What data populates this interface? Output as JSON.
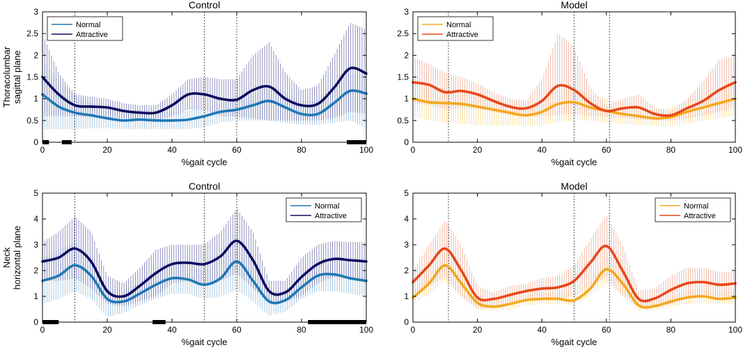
{
  "colors": {
    "control_normal": "#1f77b4",
    "control_attractive": "#0b0b5e",
    "model_normal": "#f4a81d",
    "model_attractive": "#e8471a",
    "control_normal_band": "#7fb2d8",
    "control_attractive_band": "#5a5aa0",
    "model_normal_band": "#f3d27a",
    "model_attractive_band": "#e89a80",
    "event_bar": "#000000"
  },
  "chart_data": [
    {
      "id": "control-thoracolumbar",
      "type": "line",
      "title": "Control",
      "xlabel": "%gait cycle",
      "ylabel": [
        "Thoracolumbar",
        "sagittal plane"
      ],
      "xlim": [
        0,
        100
      ],
      "ylim": [
        0,
        3
      ],
      "xticks": [
        "0",
        "20",
        "40",
        "60",
        "80",
        "100"
      ],
      "yticks": [
        "0",
        "0.5",
        "1",
        "1.5",
        "2",
        "2.5",
        "3"
      ],
      "legend": {
        "placement": "top-left",
        "entries": [
          "Normal",
          "Attractive"
        ]
      },
      "event_lines": [
        10,
        50,
        60
      ],
      "significance_bars": [
        [
          0,
          2
        ],
        [
          6,
          9
        ],
        [
          94,
          100
        ]
      ],
      "series": [
        {
          "name": "Normal",
          "color_key": "control_normal",
          "x": [
            0,
            5,
            10,
            15,
            20,
            25,
            30,
            35,
            40,
            45,
            50,
            55,
            60,
            65,
            70,
            75,
            80,
            85,
            90,
            95,
            100
          ],
          "y": [
            1.1,
            0.82,
            0.68,
            0.62,
            0.55,
            0.5,
            0.52,
            0.5,
            0.5,
            0.52,
            0.6,
            0.7,
            0.75,
            0.85,
            0.95,
            0.8,
            0.65,
            0.65,
            0.9,
            1.18,
            1.12
          ],
          "upper": [
            1.9,
            1.4,
            1.1,
            0.9,
            0.8,
            0.72,
            0.75,
            0.7,
            0.7,
            0.72,
            0.8,
            0.9,
            0.95,
            1.1,
            1.3,
            1.15,
            0.95,
            0.95,
            1.3,
            1.6,
            1.55
          ],
          "lower": [
            0.3,
            0.3,
            0.3,
            0.32,
            0.32,
            0.3,
            0.3,
            0.3,
            0.3,
            0.3,
            0.35,
            0.45,
            0.5,
            0.5,
            0.5,
            0.45,
            0.4,
            0.4,
            0.45,
            0.5,
            0.32
          ]
        },
        {
          "name": "Attractive",
          "color_key": "control_attractive",
          "x": [
            0,
            5,
            10,
            15,
            20,
            25,
            30,
            35,
            40,
            45,
            50,
            55,
            60,
            65,
            70,
            75,
            80,
            85,
            90,
            95,
            100
          ],
          "y": [
            1.5,
            1.1,
            0.85,
            0.82,
            0.8,
            0.72,
            0.68,
            0.68,
            0.85,
            1.1,
            1.1,
            1.0,
            0.98,
            1.2,
            1.28,
            1.0,
            0.85,
            0.88,
            1.25,
            1.7,
            1.58
          ],
          "upper": [
            2.5,
            1.6,
            1.1,
            1.05,
            1.0,
            0.9,
            0.85,
            0.85,
            1.1,
            1.45,
            1.5,
            1.45,
            1.45,
            2.0,
            2.3,
            1.6,
            1.2,
            1.3,
            2.0,
            2.75,
            2.6
          ],
          "lower": [
            0.6,
            0.6,
            0.6,
            0.58,
            0.58,
            0.55,
            0.5,
            0.5,
            0.6,
            0.75,
            0.75,
            0.6,
            0.58,
            0.55,
            0.5,
            0.5,
            0.5,
            0.5,
            0.55,
            0.7,
            0.65
          ]
        }
      ]
    },
    {
      "id": "model-thoracolumbar",
      "type": "line",
      "title": "Model",
      "xlabel": "%gait cycle",
      "ylabel": [],
      "xlim": [
        0,
        100
      ],
      "ylim": [
        0,
        3
      ],
      "xticks": [
        "0",
        "20",
        "40",
        "60",
        "80",
        "100"
      ],
      "yticks": [
        "0",
        "0.5",
        "1",
        "1.5",
        "2",
        "2.5",
        "3"
      ],
      "legend": {
        "placement": "top-left",
        "entries": [
          "Normal",
          "Attractive"
        ]
      },
      "event_lines": [
        11,
        50,
        61
      ],
      "significance_bars": [],
      "series": [
        {
          "name": "Normal",
          "color_key": "model_normal",
          "x": [
            0,
            5,
            10,
            15,
            20,
            25,
            30,
            35,
            40,
            45,
            50,
            55,
            60,
            65,
            70,
            75,
            80,
            85,
            90,
            95,
            100
          ],
          "y": [
            1.0,
            0.92,
            0.9,
            0.88,
            0.82,
            0.75,
            0.68,
            0.62,
            0.7,
            0.88,
            0.92,
            0.8,
            0.72,
            0.65,
            0.6,
            0.55,
            0.58,
            0.7,
            0.8,
            0.9,
            1.0
          ],
          "upper": [
            1.4,
            1.3,
            1.25,
            1.2,
            1.1,
            1.0,
            0.9,
            0.85,
            1.0,
            1.2,
            1.25,
            1.1,
            1.0,
            0.9,
            0.8,
            0.75,
            0.8,
            0.95,
            1.1,
            1.2,
            1.35
          ],
          "lower": [
            0.6,
            0.5,
            0.45,
            0.42,
            0.4,
            0.38,
            0.38,
            0.38,
            0.4,
            0.45,
            0.5,
            0.5,
            0.45,
            0.42,
            0.4,
            0.38,
            0.38,
            0.42,
            0.5,
            0.55,
            0.62
          ]
        },
        {
          "name": "Attractive",
          "color_key": "model_attractive",
          "x": [
            0,
            5,
            10,
            15,
            20,
            25,
            30,
            35,
            40,
            45,
            50,
            55,
            60,
            65,
            70,
            75,
            80,
            85,
            90,
            95,
            100
          ],
          "y": [
            1.38,
            1.32,
            1.15,
            1.18,
            1.1,
            0.95,
            0.82,
            0.78,
            0.95,
            1.3,
            1.2,
            0.9,
            0.72,
            0.78,
            0.8,
            0.65,
            0.62,
            0.78,
            0.95,
            1.2,
            1.38
          ],
          "upper": [
            1.95,
            1.8,
            1.6,
            1.5,
            1.35,
            1.15,
            1.0,
            0.95,
            1.45,
            2.5,
            2.2,
            1.25,
            0.85,
            1.0,
            1.1,
            0.8,
            0.7,
            1.0,
            1.4,
            1.9,
            2.0
          ],
          "lower": [
            0.9,
            0.85,
            0.75,
            0.8,
            0.75,
            0.7,
            0.62,
            0.6,
            0.6,
            0.62,
            0.65,
            0.6,
            0.58,
            0.56,
            0.52,
            0.5,
            0.5,
            0.55,
            0.6,
            0.7,
            0.8
          ]
        }
      ]
    },
    {
      "id": "control-neck",
      "type": "line",
      "title": "Control",
      "xlabel": "%gait cycle",
      "ylabel": [
        "Neck",
        "horizontal plane"
      ],
      "xlim": [
        0,
        100
      ],
      "ylim": [
        0,
        5
      ],
      "xticks": [
        "0",
        "20",
        "40",
        "60",
        "80",
        "100"
      ],
      "yticks": [
        "0",
        "1",
        "2",
        "3",
        "4",
        "5"
      ],
      "legend": {
        "placement": "top-right",
        "entries": [
          "Normal",
          "Attractive"
        ]
      },
      "event_lines": [
        10,
        50,
        60
      ],
      "significance_bars": [
        [
          0,
          5
        ],
        [
          34,
          38
        ],
        [
          82,
          100
        ]
      ],
      "series": [
        {
          "name": "Normal",
          "color_key": "control_normal",
          "x": [
            0,
            5,
            10,
            15,
            20,
            25,
            30,
            35,
            40,
            45,
            50,
            55,
            60,
            65,
            70,
            75,
            80,
            85,
            90,
            95,
            100
          ],
          "y": [
            1.6,
            1.8,
            2.2,
            1.8,
            0.9,
            0.8,
            1.1,
            1.45,
            1.7,
            1.65,
            1.45,
            1.7,
            2.35,
            1.6,
            0.8,
            0.85,
            1.35,
            1.8,
            1.85,
            1.7,
            1.6
          ],
          "upper": [
            2.5,
            2.8,
            3.1,
            2.6,
            1.3,
            1.2,
            1.6,
            2.0,
            2.3,
            2.2,
            2.0,
            2.4,
            3.4,
            2.4,
            1.2,
            1.2,
            1.8,
            2.4,
            2.5,
            2.3,
            2.2
          ],
          "lower": [
            0.7,
            0.9,
            1.2,
            0.9,
            0.2,
            0.35,
            0.65,
            0.9,
            1.1,
            1.1,
            0.9,
            1.0,
            1.25,
            0.8,
            0.25,
            0.4,
            0.9,
            1.2,
            1.2,
            1.1,
            1.0
          ]
        },
        {
          "name": "Attractive",
          "color_key": "control_attractive",
          "x": [
            0,
            5,
            10,
            15,
            20,
            25,
            30,
            35,
            40,
            45,
            50,
            55,
            60,
            65,
            70,
            75,
            80,
            85,
            90,
            95,
            100
          ],
          "y": [
            2.35,
            2.5,
            2.85,
            2.35,
            1.2,
            1.0,
            1.4,
            1.9,
            2.25,
            2.3,
            2.25,
            2.55,
            3.15,
            2.4,
            1.2,
            1.15,
            1.75,
            2.25,
            2.45,
            2.4,
            2.35
          ],
          "upper": [
            3.1,
            3.5,
            4.1,
            3.5,
            1.8,
            1.5,
            2.1,
            2.8,
            3.0,
            3.0,
            3.0,
            3.5,
            4.4,
            3.5,
            1.6,
            1.6,
            2.5,
            3.0,
            3.15,
            3.1,
            3.1
          ],
          "lower": [
            1.6,
            1.6,
            1.7,
            1.3,
            0.7,
            0.6,
            0.8,
            1.0,
            1.5,
            1.6,
            1.5,
            1.6,
            1.9,
            1.3,
            0.8,
            0.8,
            1.0,
            1.5,
            1.75,
            1.7,
            1.6
          ]
        }
      ]
    },
    {
      "id": "model-neck",
      "type": "line",
      "title": "Model",
      "xlabel": "%gait cycle",
      "ylabel": [],
      "xlim": [
        0,
        100
      ],
      "ylim": [
        0,
        5
      ],
      "xticks": [
        "0",
        "20",
        "40",
        "60",
        "80",
        "100"
      ],
      "yticks": [
        "0",
        "1",
        "2",
        "3",
        "4",
        "5"
      ],
      "legend": {
        "placement": "top-right",
        "entries": [
          "Normal",
          "Attractive"
        ]
      },
      "event_lines": [
        11,
        50,
        61
      ],
      "significance_bars": [],
      "series": [
        {
          "name": "Normal",
          "color_key": "model_normal",
          "x": [
            0,
            5,
            10,
            15,
            20,
            25,
            30,
            35,
            40,
            45,
            50,
            55,
            60,
            65,
            70,
            75,
            80,
            85,
            90,
            95,
            100
          ],
          "y": [
            0.95,
            1.5,
            2.2,
            1.5,
            0.75,
            0.6,
            0.7,
            0.85,
            0.9,
            0.9,
            0.85,
            1.3,
            2.05,
            1.5,
            0.65,
            0.62,
            0.8,
            0.95,
            1.0,
            0.9,
            0.95
          ],
          "upper": [
            1.2,
            1.9,
            2.8,
            2.0,
            1.0,
            0.8,
            0.9,
            1.05,
            1.15,
            1.15,
            1.1,
            1.6,
            2.6,
            1.9,
            0.85,
            0.8,
            1.0,
            1.2,
            1.25,
            1.15,
            1.2
          ],
          "lower": [
            0.7,
            1.1,
            1.6,
            1.0,
            0.5,
            0.45,
            0.5,
            0.65,
            0.7,
            0.7,
            0.65,
            1.0,
            1.5,
            1.1,
            0.45,
            0.45,
            0.6,
            0.7,
            0.75,
            0.7,
            0.7
          ]
        },
        {
          "name": "Attractive",
          "color_key": "model_attractive",
          "x": [
            0,
            5,
            10,
            15,
            20,
            25,
            30,
            35,
            40,
            45,
            50,
            55,
            60,
            65,
            70,
            75,
            80,
            85,
            90,
            95,
            100
          ],
          "y": [
            1.55,
            2.2,
            2.85,
            2.0,
            0.95,
            0.9,
            1.05,
            1.2,
            1.3,
            1.35,
            1.6,
            2.3,
            2.95,
            2.0,
            0.9,
            0.92,
            1.25,
            1.5,
            1.55,
            1.45,
            1.5
          ],
          "upper": [
            2.0,
            3.0,
            3.95,
            3.0,
            1.4,
            1.15,
            1.4,
            1.5,
            1.7,
            1.8,
            2.2,
            3.2,
            4.15,
            3.0,
            1.2,
            1.3,
            1.8,
            2.1,
            2.1,
            1.95,
            1.95
          ],
          "lower": [
            1.0,
            1.4,
            1.75,
            1.0,
            0.5,
            0.6,
            0.7,
            0.85,
            0.9,
            0.9,
            1.0,
            1.4,
            1.75,
            1.0,
            0.6,
            0.6,
            0.7,
            0.9,
            1.0,
            0.95,
            1.0
          ]
        }
      ]
    }
  ]
}
